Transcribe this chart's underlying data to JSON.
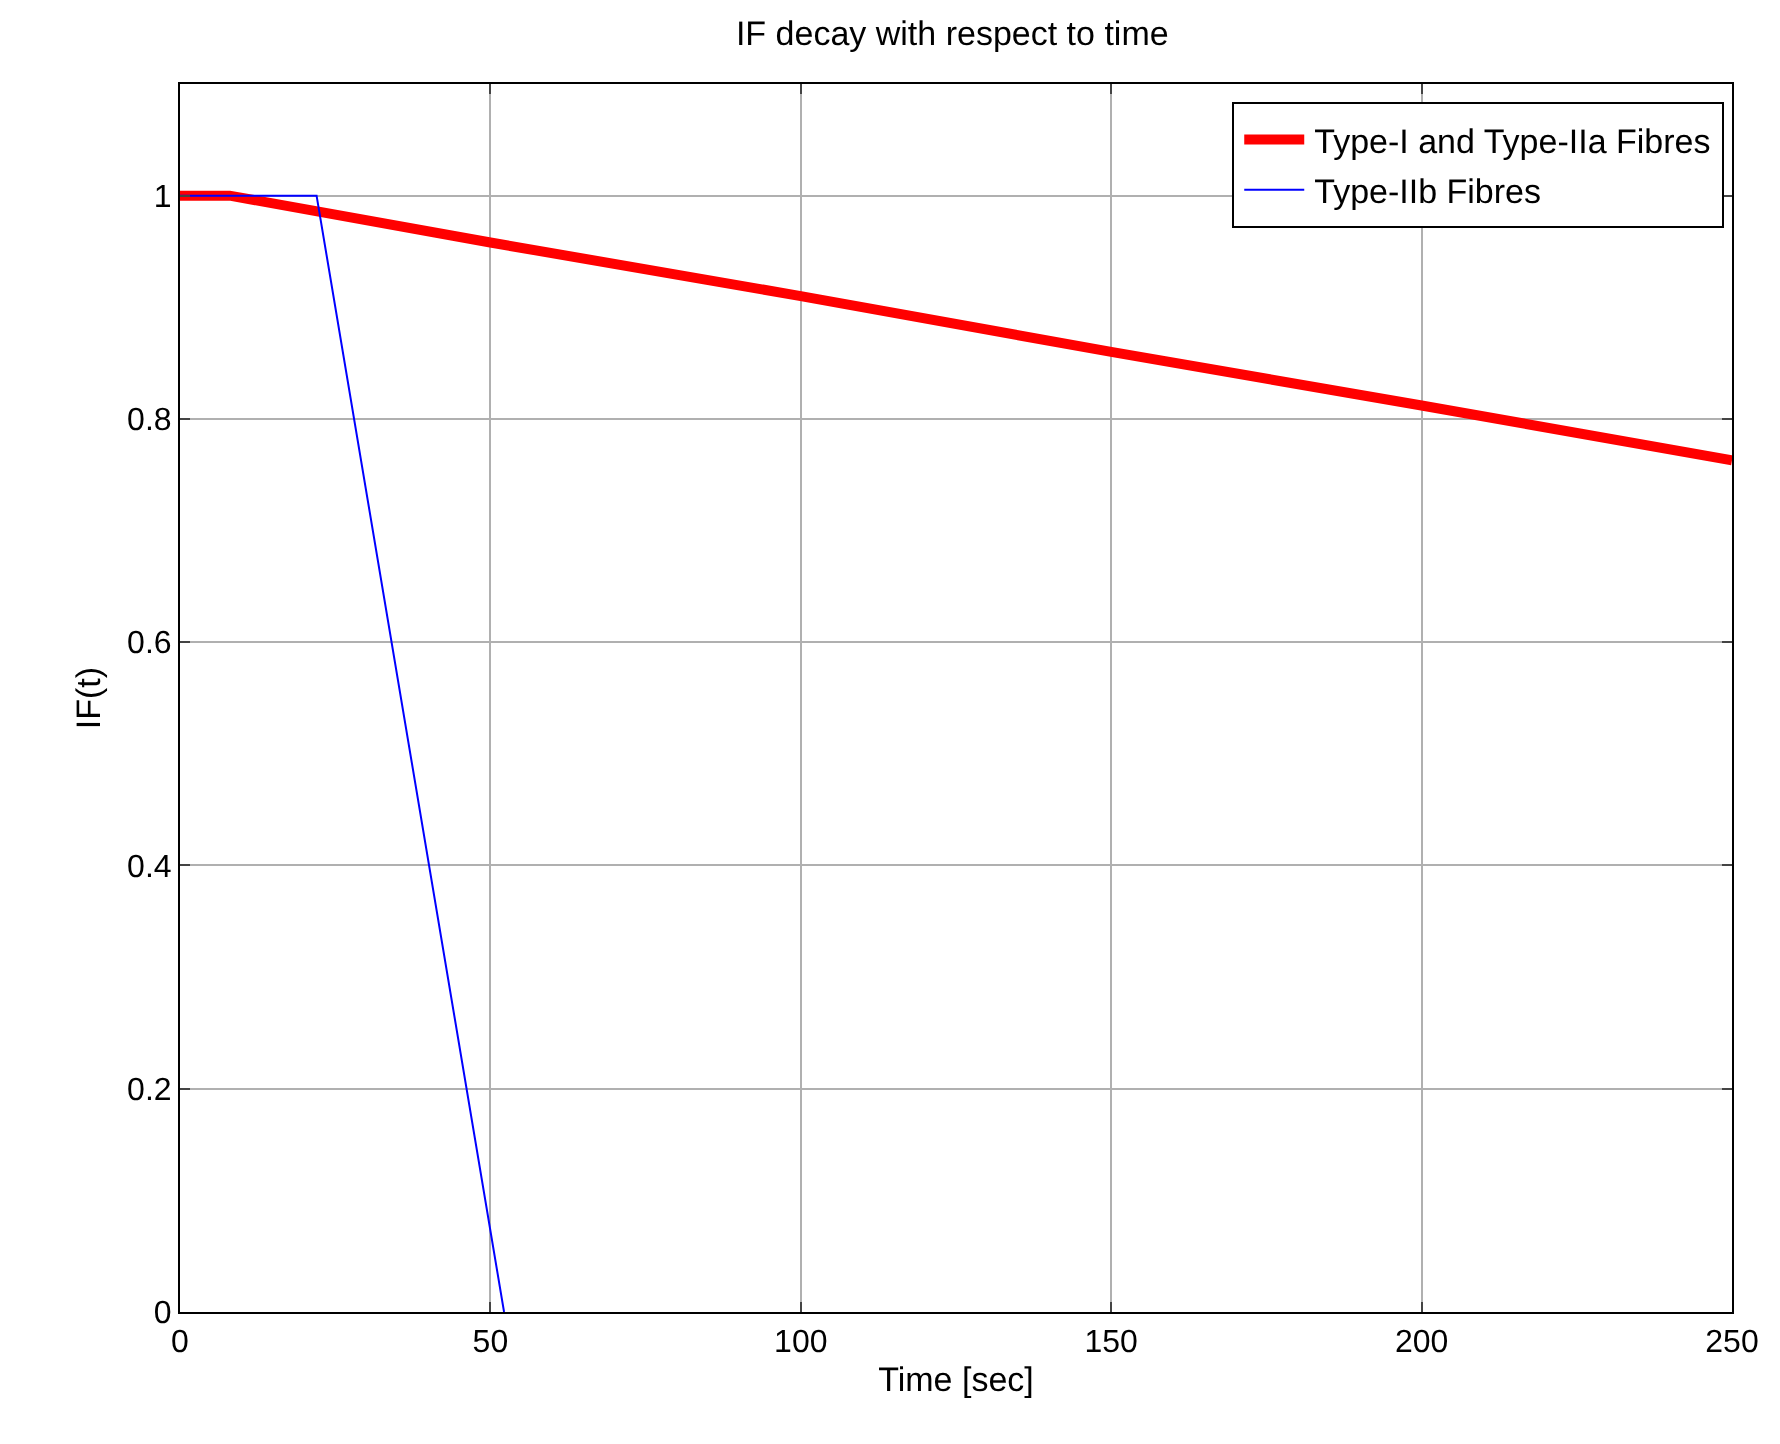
{
  "chart_data": {
    "type": "line",
    "title": "IF decay with respect to time",
    "xlabel": "Time [sec]",
    "ylabel": "IF(t)",
    "series": [
      {
        "name": "Type-I and Type-IIa Fibres",
        "color": "#ff0000",
        "x": [
          0,
          8,
          50,
          100,
          150,
          200,
          250
        ],
        "values": [
          1,
          1,
          0.958,
          0.91,
          0.86,
          0.812,
          0.763
        ]
      },
      {
        "name": "Type-IIb Fibres",
        "color": "#0000ff",
        "x": [
          0,
          22,
          52.2
        ],
        "values": [
          1,
          1,
          0
        ]
      }
    ],
    "xlim": [
      0,
      250
    ],
    "xticks": [
      0,
      50,
      100,
      150,
      200,
      250
    ],
    "ylim": [
      0,
      1.1
    ],
    "yticks": [
      0,
      0.2,
      0.4,
      0.6,
      0.8,
      1
    ],
    "grid": true,
    "legend": "top right",
    "marker": "none",
    "line_style": "solid"
  }
}
